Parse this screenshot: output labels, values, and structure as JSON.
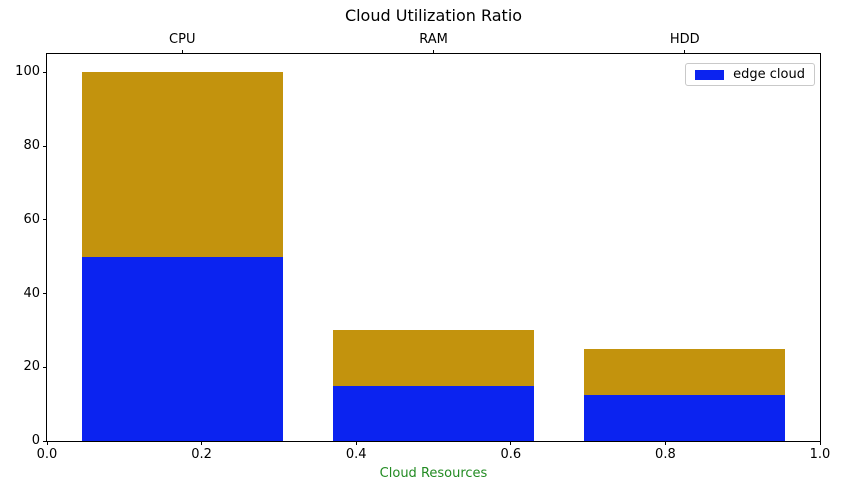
{
  "chart_data": {
    "type": "bar",
    "stacked": true,
    "title": "Cloud Utilization Ratio",
    "xlabel": "Cloud Resources",
    "ylabel": "",
    "categories": [
      "CPU",
      "RAM",
      "HDD"
    ],
    "series": [
      {
        "name": "edge cloud",
        "color": "#0b23f0",
        "values": [
          50,
          15,
          12.5
        ],
        "show_in_legend": true
      },
      {
        "name": "",
        "color": "#c3930d",
        "values": [
          50,
          15,
          12.5
        ],
        "show_in_legend": false
      }
    ],
    "stack_totals": [
      100,
      30,
      25
    ],
    "bar_centers": [
      0.175,
      0.5,
      0.825
    ],
    "bar_width": 0.26,
    "xlim": [
      0.0,
      1.0
    ],
    "ylim": [
      0,
      105
    ],
    "x_tick_labels": [
      "0.0",
      "0.2",
      "0.4",
      "0.6",
      "0.8",
      "1.0"
    ],
    "x_tick_values": [
      0.0,
      0.2,
      0.4,
      0.6,
      0.8,
      1.0
    ],
    "y_tick_labels": [
      "0",
      "20",
      "40",
      "60",
      "80",
      "100"
    ],
    "y_tick_values": [
      0,
      20,
      40,
      60,
      80,
      100
    ],
    "grid": false,
    "legend": {
      "position": "upper right",
      "entries": [
        {
          "label": "edge cloud",
          "color": "#0b23f0"
        }
      ]
    },
    "colors": {
      "xlabel_text": "#228b22",
      "axis": "#000000",
      "background": "#ffffff"
    }
  }
}
